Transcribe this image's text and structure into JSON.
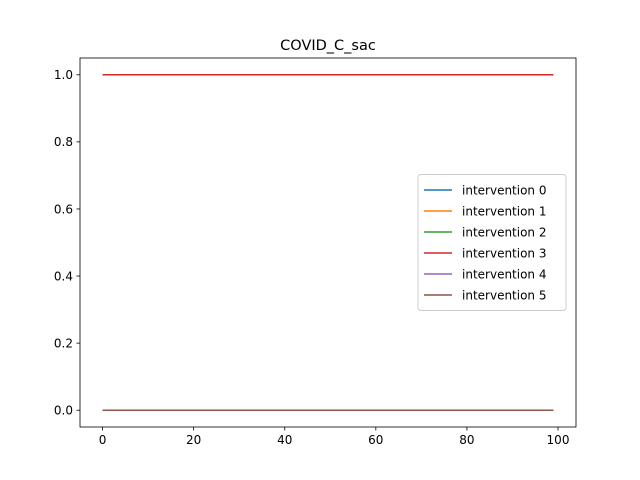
{
  "chart_data": {
    "type": "line",
    "title": "COVID_C_sac",
    "xlabel": "",
    "ylabel": "",
    "xlim": [
      -4.95,
      103.95
    ],
    "ylim": [
      -0.05,
      1.05
    ],
    "x_ticks": [
      0,
      20,
      40,
      60,
      80,
      100
    ],
    "y_ticks": [
      0.0,
      0.2,
      0.4,
      0.6,
      0.8,
      1.0
    ],
    "x_tick_labels": [
      "0",
      "20",
      "40",
      "60",
      "80",
      "100"
    ],
    "y_tick_labels": [
      "0.0",
      "0.2",
      "0.4",
      "0.6",
      "0.8",
      "1.0"
    ],
    "x": [
      0,
      99
    ],
    "series": [
      {
        "name": "intervention 0",
        "color": "#1f77b4",
        "values": [
          0,
          0
        ]
      },
      {
        "name": "intervention 1",
        "color": "#ff7f0e",
        "values": [
          0,
          0
        ]
      },
      {
        "name": "intervention 2",
        "color": "#2ca02c",
        "values": [
          1,
          1
        ]
      },
      {
        "name": "intervention 3",
        "color": "#d62728",
        "values": [
          1,
          1
        ]
      },
      {
        "name": "intervention 4",
        "color": "#9467bd",
        "values": [
          0,
          0
        ]
      },
      {
        "name": "intervention 5",
        "color": "#8c564b",
        "values": [
          0,
          0
        ]
      }
    ],
    "grid": false,
    "legend_position": "center-right"
  }
}
